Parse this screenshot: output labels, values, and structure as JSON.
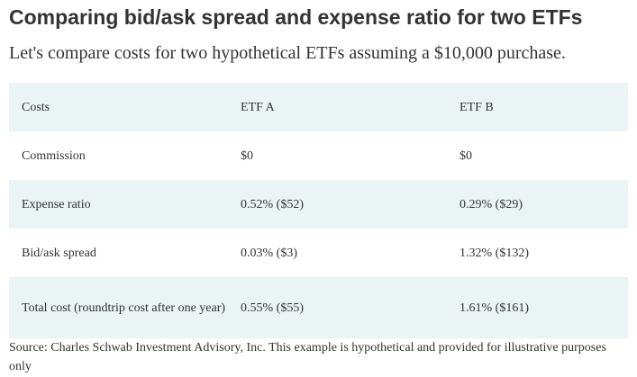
{
  "title": "Comparing bid/ask spread and expense ratio for two ETFs",
  "subtitle": "Let's compare costs for two hypothetical ETFs assuming a $10,000 purchase.",
  "table": {
    "headers": [
      "Costs",
      "ETF A",
      "ETF B"
    ],
    "rows": [
      [
        "Commission",
        "$0",
        "$0"
      ],
      [
        "Expense ratio",
        "0.52% ($52)",
        "0.29% ($29)"
      ],
      [
        "Bid/ask spread",
        "0.03% ($3)",
        "1.32% ($132)"
      ],
      [
        "Total cost (roundtrip cost after one year)",
        "0.55% ($55)",
        "1.61% ($161)"
      ]
    ]
  },
  "source": "Source: Charles Schwab Investment Advisory, Inc. This example is hypothetical and provided for illustrative purposes only",
  "colors": {
    "row_shade": "#eaf4f4",
    "text": "#333333"
  }
}
